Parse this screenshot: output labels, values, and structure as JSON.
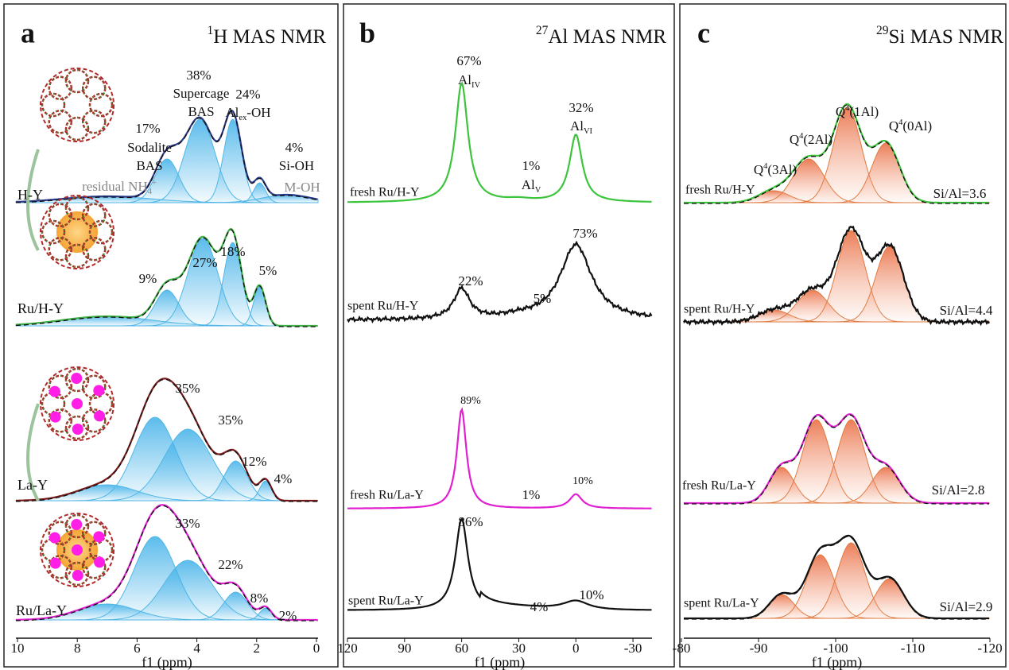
{
  "panels": [
    {
      "letter": "a",
      "title": {
        "sup": "1",
        "rest": "H MAS NMR"
      },
      "axis_label": "f1 (ppm)",
      "ticks": [
        10,
        8,
        6,
        4,
        2,
        0
      ],
      "samples": [
        "H-Y",
        "Ru/H-Y",
        "La-Y",
        "Ru/La-Y"
      ],
      "labels": [
        "17%",
        "Sodalite",
        "BAS",
        "38%",
        "Supercage",
        "BAS",
        "24%",
        {
          "base": "Al",
          "sub": "ex",
          "rest": "-OH"
        },
        "4%",
        "Si-OH",
        {
          "base": "residual NH",
          "sub": "4",
          "sup": "+"
        },
        "M-OH",
        "27%",
        "18%",
        "9%",
        "5%",
        "35%",
        "35%",
        "12%",
        "4%",
        "33%",
        "22%",
        "8%",
        "2%"
      ]
    },
    {
      "letter": "b",
      "title": {
        "sup": "27",
        "rest": "Al MAS NMR"
      },
      "axis_label": "f1 (ppm)",
      "ticks": [
        120,
        90,
        60,
        30,
        0,
        -30
      ],
      "samples": [
        "fresh Ru/H-Y",
        "spent Ru/H-Y",
        "fresh Ru/La-Y",
        "spent Ru/La-Y"
      ],
      "labels": [
        "67%",
        {
          "base": "Al",
          "sub": "IV"
        },
        "1%",
        {
          "base": "Al",
          "sub": "V"
        },
        "32%",
        {
          "base": "Al",
          "sub": "VI"
        },
        "73%",
        "22%",
        "5%",
        "89%",
        "1%",
        "10%",
        "86%",
        "4%",
        "10%"
      ]
    },
    {
      "letter": "c",
      "title": {
        "sup": "29",
        "rest": "Si MAS NMR"
      },
      "axis_label": "f1 (ppm)",
      "ticks": [
        -80,
        -90,
        -100,
        -110,
        -120
      ],
      "samples": [
        "fresh Ru/H-Y",
        "spent Ru/H-Y",
        "fresh Ru/La-Y",
        "spent Ru/La-Y"
      ],
      "labels": [
        {
          "base": "Q",
          "sup": "4",
          "rest": "(3Al)"
        },
        {
          "base": "Q",
          "sup": "4",
          "rest": "(2Al)"
        },
        {
          "base": "Q",
          "sup": "4",
          "rest": "(1Al)"
        },
        {
          "base": "Q",
          "sup": "4",
          "rest": "(0Al)"
        },
        "Si/Al=3.6",
        "Si/Al=4.4",
        "Si/Al=2.8",
        "Si/Al=2.9"
      ]
    }
  ]
}
